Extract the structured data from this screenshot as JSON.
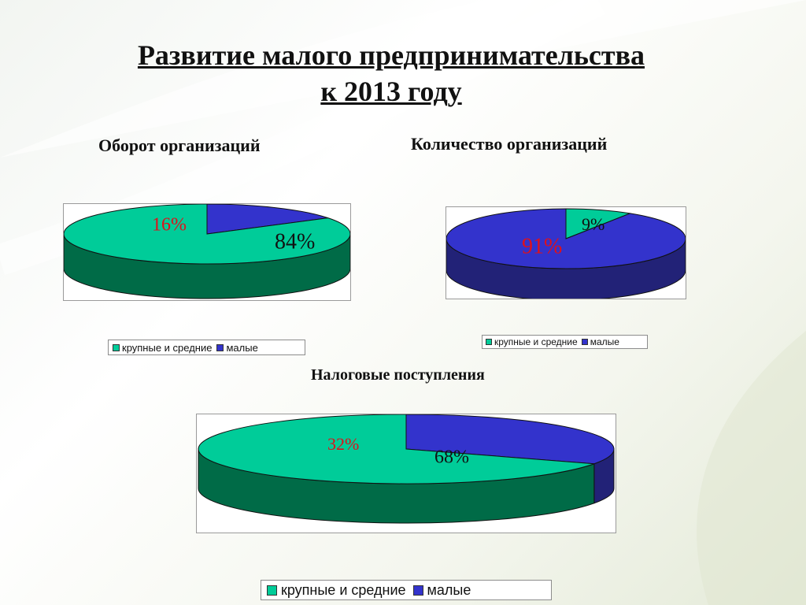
{
  "slide": {
    "title_line1": "Развитие малого предпринимательства",
    "title_line2": " к 2013 году"
  },
  "colors": {
    "large_medium": "#00cc99",
    "large_medium_side": "#006b47",
    "small": "#3333cc",
    "small_side": "#222277",
    "label_red": "#e0101a",
    "label_dark": "#111111"
  },
  "chart_data": [
    {
      "type": "pie",
      "title": "Оборот организаций",
      "categories": [
        "крупные и средние",
        "малые"
      ],
      "values": [
        84,
        16
      ],
      "data_labels": [
        "84%",
        "16%"
      ],
      "legend": {
        "position": "bottom",
        "entries": [
          "крупные и средние",
          "малые"
        ]
      }
    },
    {
      "type": "pie",
      "title": "Количество организаций",
      "categories": [
        "крупные и средние",
        "малые"
      ],
      "values": [
        9,
        91
      ],
      "data_labels": [
        "9%",
        "91%"
      ],
      "legend": {
        "position": "bottom",
        "entries": [
          "крупные и средние",
          "малые"
        ]
      }
    },
    {
      "type": "pie",
      "title": "Налоговые поступления",
      "categories": [
        "крупные и средние",
        "малые"
      ],
      "values": [
        68,
        32
      ],
      "data_labels": [
        "68%",
        "32%"
      ],
      "legend": {
        "position": "bottom",
        "entries": [
          "крупные и средние",
          "малые"
        ]
      }
    }
  ]
}
